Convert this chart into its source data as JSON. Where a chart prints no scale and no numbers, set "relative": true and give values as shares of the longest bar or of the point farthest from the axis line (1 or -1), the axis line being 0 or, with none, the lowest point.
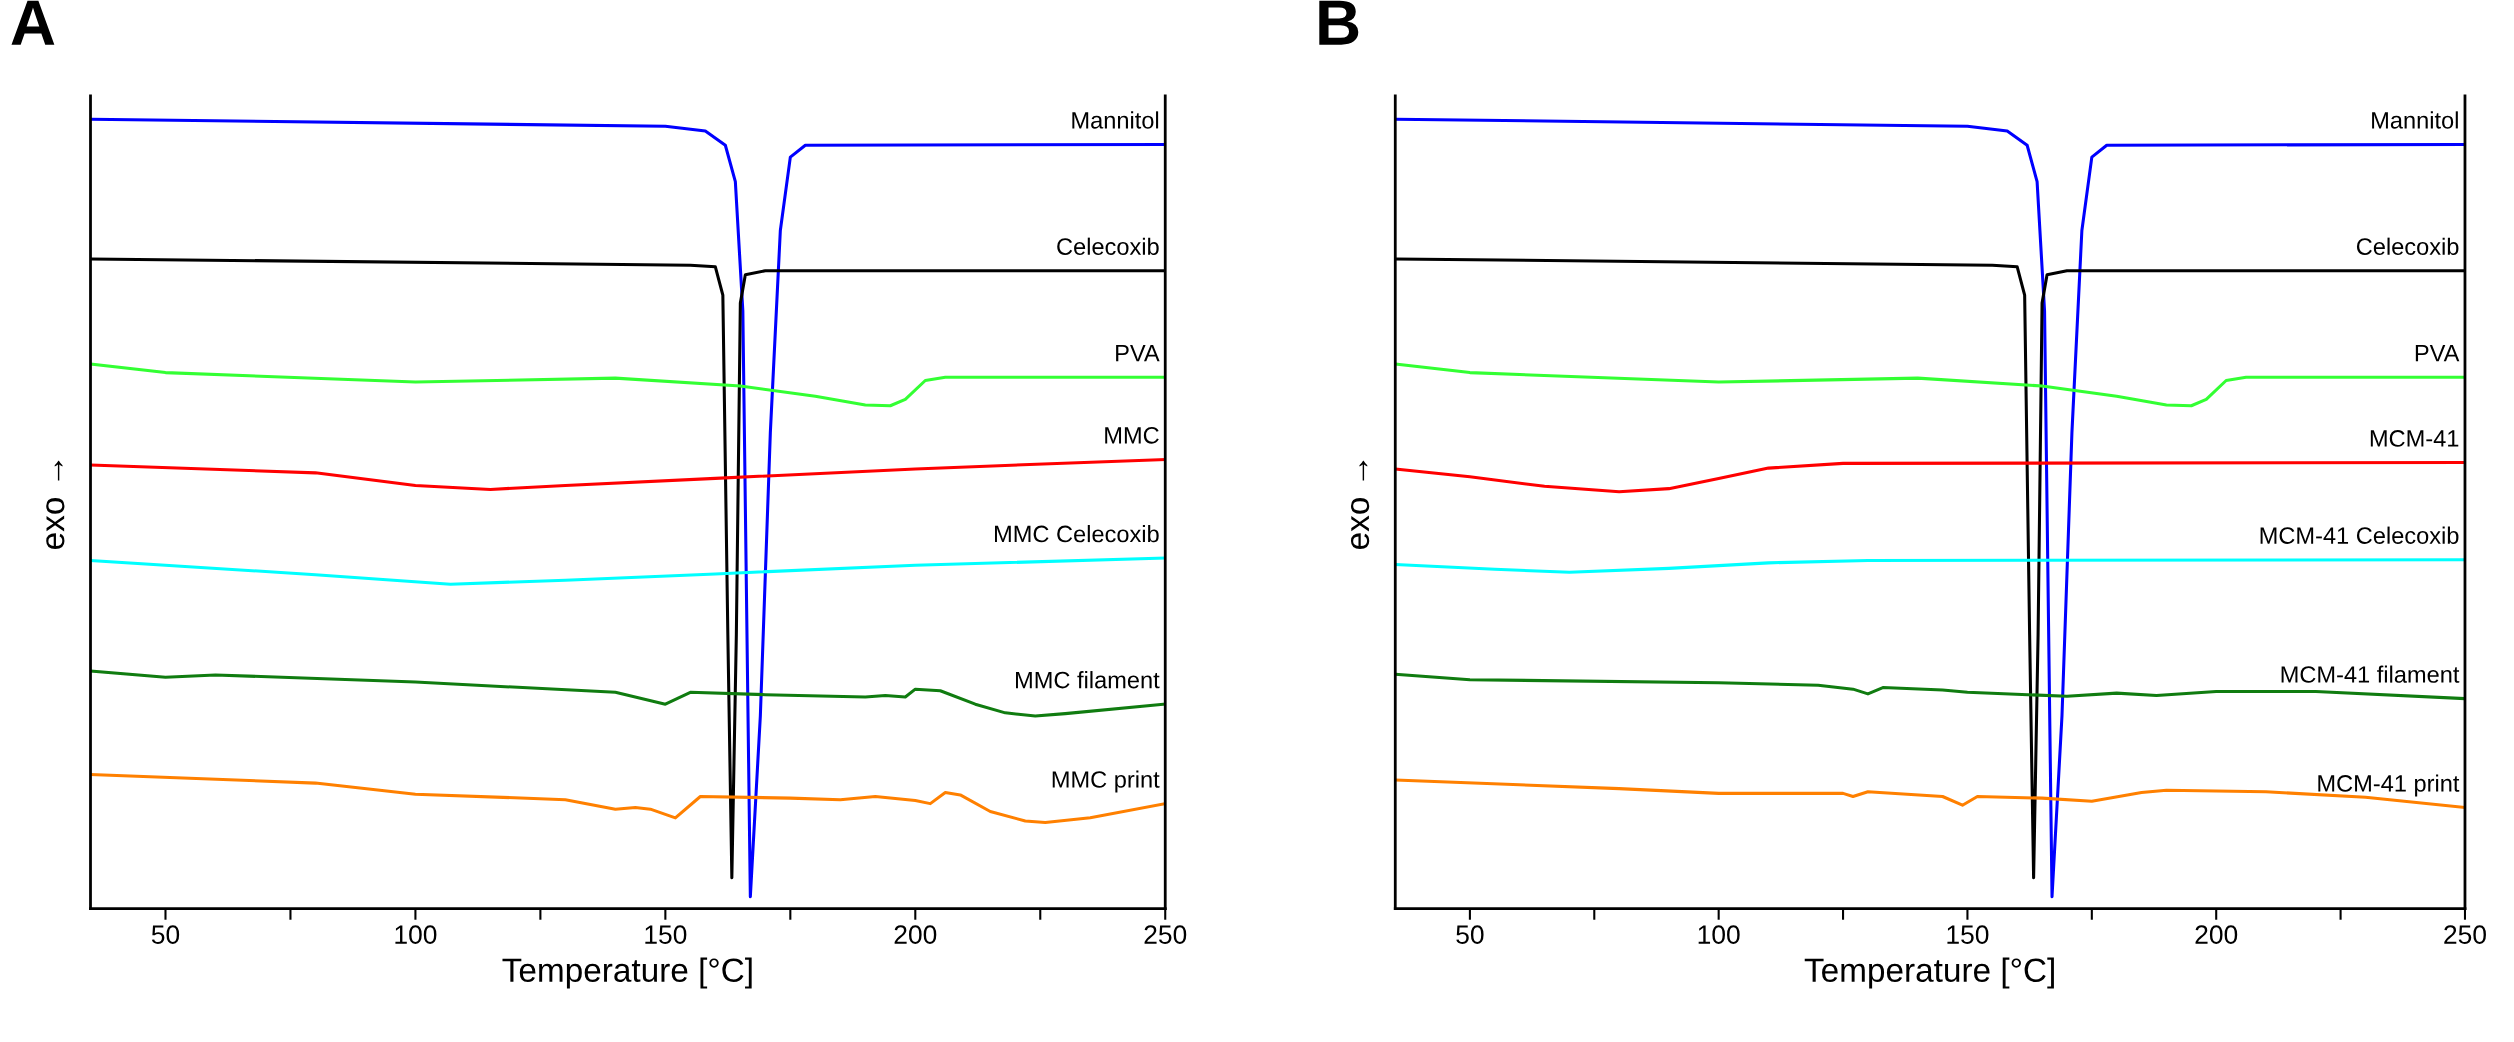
{
  "chart_data": [
    {
      "type": "line",
      "relative": true,
      "xlabel": "Temperature [°C]",
      "ylabel": "exo →",
      "annotations": [
        "A"
      ],
      "legend": false,
      "grid": false,
      "tick_labels": "x",
      "xlim": [
        35,
        250
      ],
      "xticks": [
        50,
        {
          "value": 75,
          "label": null
        },
        100,
        {
          "value": 125,
          "label": null
        },
        150,
        {
          "value": 175,
          "label": null
        },
        200,
        {
          "value": 225,
          "label": null
        },
        250
      ],
      "series": [
        {
          "name": "Mannitol",
          "color": "#0000ff",
          "x": [
            35,
            150,
            158,
            162,
            164,
            165.5,
            167,
            169,
            171,
            173,
            175,
            178,
            250
          ],
          "values": [
            1.0,
            0.991,
            0.985,
            0.967,
            0.921,
            0.757,
            0.015,
            0.244,
            0.603,
            0.859,
            0.952,
            0.967,
            0.968
          ]
        },
        {
          "name": "Celecoxib",
          "color": "#000000",
          "x": [
            35,
            155,
            160,
            161.5,
            162.5,
            163.3,
            164.2,
            165,
            166,
            170,
            250
          ],
          "values": [
            0.823,
            0.815,
            0.813,
            0.777,
            0.347,
            0.039,
            0.347,
            0.767,
            0.803,
            0.808,
            0.808
          ]
        },
        {
          "name": "PVA",
          "color": "#33ff33",
          "x": [
            35,
            50,
            100,
            140,
            165,
            180,
            190,
            195,
            198,
            202,
            206,
            250
          ],
          "values": [
            0.69,
            0.679,
            0.667,
            0.672,
            0.662,
            0.649,
            0.638,
            0.637,
            0.645,
            0.669,
            0.673,
            0.673
          ]
        },
        {
          "name": "MMC",
          "color": "#ff0000",
          "x": [
            35,
            80,
            100,
            115,
            130,
            160,
            200,
            250
          ],
          "values": [
            0.562,
            0.552,
            0.536,
            0.531,
            0.536,
            0.545,
            0.557,
            0.569
          ]
        },
        {
          "name": "MMC Celecoxib",
          "color": "#00ffff",
          "x": [
            35,
            80,
            107,
            130,
            160,
            200,
            250
          ],
          "values": [
            0.441,
            0.423,
            0.411,
            0.416,
            0.424,
            0.435,
            0.444
          ]
        },
        {
          "name": "MMC filament",
          "color": "#107c10",
          "x": [
            35,
            50,
            60,
            100,
            140,
            150,
            155,
            170,
            190,
            194,
            198,
            200,
            205,
            212,
            218,
            224,
            230,
            250
          ],
          "values": [
            0.301,
            0.293,
            0.296,
            0.287,
            0.274,
            0.259,
            0.274,
            0.271,
            0.268,
            0.27,
            0.268,
            0.278,
            0.276,
            0.259,
            0.248,
            0.244,
            0.247,
            0.259
          ]
        },
        {
          "name": "MMC print",
          "color": "#ff8000",
          "x": [
            35,
            80,
            100,
            130,
            140,
            144,
            147,
            152,
            157,
            175,
            185,
            192,
            200,
            203,
            206,
            209,
            215,
            222,
            226,
            235,
            250
          ],
          "values": [
            0.17,
            0.159,
            0.145,
            0.138,
            0.126,
            0.128,
            0.126,
            0.115,
            0.142,
            0.14,
            0.138,
            0.142,
            0.137,
            0.133,
            0.147,
            0.144,
            0.123,
            0.111,
            0.109,
            0.115,
            0.133
          ]
        }
      ]
    },
    {
      "type": "line",
      "relative": true,
      "xlabel": "Temperature [°C]",
      "ylabel": "exo →",
      "annotations": [
        "B"
      ],
      "legend": false,
      "grid": false,
      "tick_labels": "x",
      "xlim": [
        35,
        250
      ],
      "xticks": [
        50,
        {
          "value": 75,
          "label": null
        },
        100,
        {
          "value": 125,
          "label": null
        },
        150,
        {
          "value": 175,
          "label": null
        },
        200,
        {
          "value": 225,
          "label": null
        },
        250
      ],
      "series": [
        {
          "name": "Mannitol",
          "color": "#0000ff",
          "x": [
            35,
            150,
            158,
            162,
            164,
            165.5,
            167,
            169,
            171,
            173,
            175,
            178,
            250
          ],
          "values": [
            1.0,
            0.991,
            0.985,
            0.967,
            0.921,
            0.757,
            0.015,
            0.244,
            0.603,
            0.859,
            0.952,
            0.967,
            0.968
          ]
        },
        {
          "name": "Celecoxib",
          "color": "#000000",
          "x": [
            35,
            155,
            160,
            161.5,
            162.5,
            163.3,
            164.2,
            165,
            166,
            170,
            250
          ],
          "values": [
            0.823,
            0.815,
            0.813,
            0.777,
            0.347,
            0.039,
            0.347,
            0.767,
            0.803,
            0.808,
            0.808
          ]
        },
        {
          "name": "PVA",
          "color": "#33ff33",
          "x": [
            35,
            50,
            100,
            140,
            165,
            180,
            190,
            195,
            198,
            202,
            206,
            250
          ],
          "values": [
            0.69,
            0.679,
            0.667,
            0.672,
            0.662,
            0.649,
            0.638,
            0.637,
            0.645,
            0.669,
            0.673,
            0.673
          ]
        },
        {
          "name": "MCM-41",
          "color": "#ff0000",
          "x": [
            35,
            50,
            65,
            80,
            90,
            100,
            110,
            125,
            250
          ],
          "values": [
            0.557,
            0.547,
            0.535,
            0.528,
            0.532,
            0.545,
            0.558,
            0.564,
            0.565
          ]
        },
        {
          "name": "MCM-41 Celecoxib",
          "color": "#00ffff",
          "x": [
            35,
            55,
            70,
            90,
            110,
            130,
            250
          ],
          "values": [
            0.436,
            0.43,
            0.426,
            0.431,
            0.438,
            0.441,
            0.442
          ]
        },
        {
          "name": "MCM-41 filament",
          "color": "#107c10",
          "x": [
            35,
            50,
            100,
            120,
            127,
            130,
            133,
            145,
            150,
            170,
            180,
            188,
            200,
            220,
            250
          ],
          "values": [
            0.297,
            0.29,
            0.286,
            0.283,
            0.278,
            0.272,
            0.28,
            0.277,
            0.274,
            0.269,
            0.273,
            0.27,
            0.275,
            0.275,
            0.266
          ]
        },
        {
          "name": "MCM-41 print",
          "color": "#ff8000",
          "x": [
            35,
            80,
            100,
            125,
            127,
            130,
            145,
            149,
            152,
            165,
            175,
            185,
            190,
            210,
            230,
            250
          ],
          "values": [
            0.163,
            0.152,
            0.146,
            0.146,
            0.142,
            0.148,
            0.142,
            0.131,
            0.142,
            0.14,
            0.136,
            0.147,
            0.15,
            0.148,
            0.141,
            0.128
          ]
        }
      ]
    }
  ]
}
